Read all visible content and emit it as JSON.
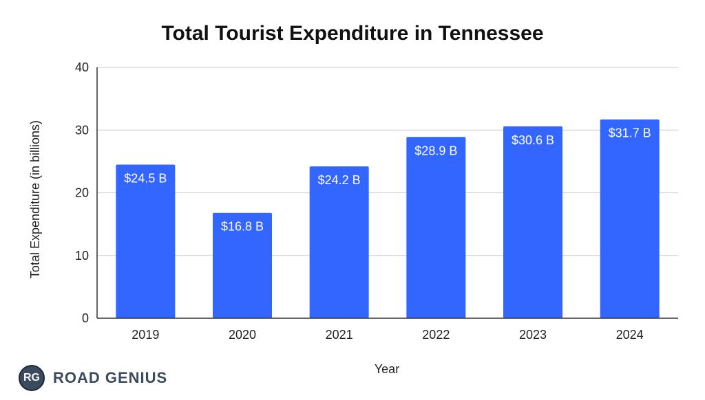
{
  "chart_data": {
    "type": "bar",
    "title": "Total Tourist Expenditure in Tennessee",
    "xlabel": "Year",
    "ylabel": "Total Expenditure (in billions)",
    "categories": [
      "2019",
      "2020",
      "2021",
      "2022",
      "2023",
      "2024"
    ],
    "values": [
      24.5,
      16.8,
      24.2,
      28.9,
      30.6,
      31.7
    ],
    "data_labels": [
      "$24.5 B",
      "$16.8 B",
      "$24.2 B",
      "$28.9 B",
      "$30.6 B",
      "$31.7 B"
    ],
    "ylim": [
      0,
      40
    ],
    "yticks": [
      0,
      10,
      20,
      30,
      40
    ],
    "grid": true,
    "bar_color": "#3366ff"
  },
  "branding": {
    "badge": "RG",
    "name": "ROAD GENIUS"
  }
}
